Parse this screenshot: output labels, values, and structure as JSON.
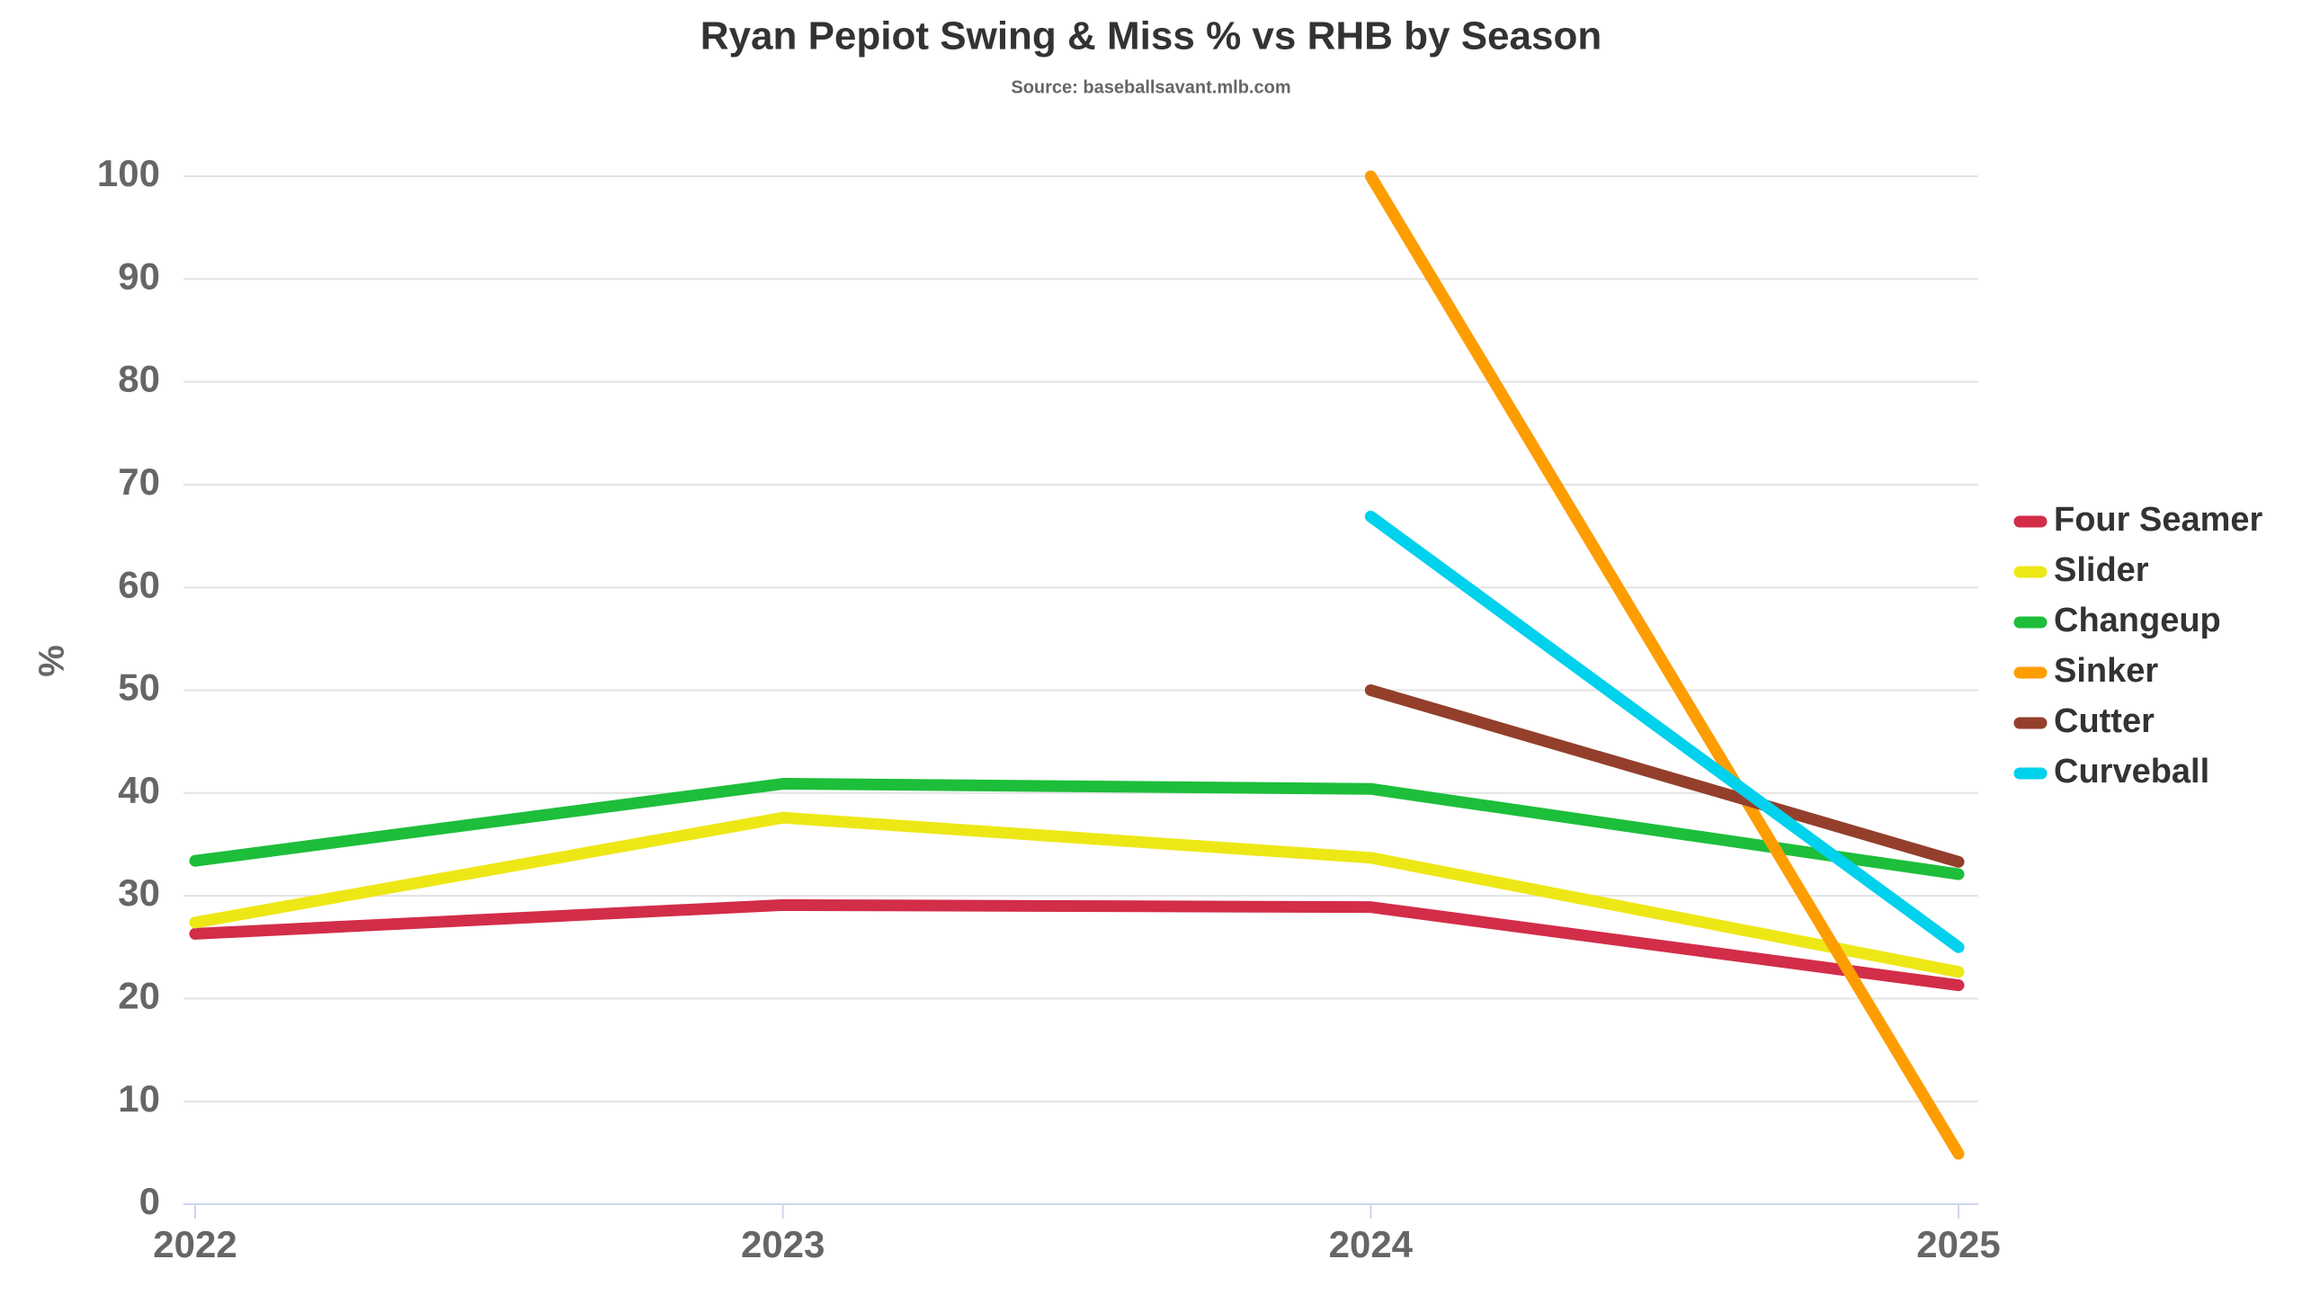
{
  "chart_data": {
    "type": "line",
    "title": "Ryan Pepiot Swing & Miss % vs RHB by Season",
    "subtitle": "Source: baseballsavant.mlb.com",
    "y_label": "%",
    "categories": [
      "2022",
      "2023",
      "2024",
      "2025"
    ],
    "series": [
      {
        "name": "Four Seamer",
        "color": "#d22d49",
        "values": [
          26.3,
          29.1,
          28.9,
          21.3
        ]
      },
      {
        "name": "Slider",
        "color": "#eee716",
        "values": [
          27.4,
          37.6,
          33.7,
          22.6
        ]
      },
      {
        "name": "Changeup",
        "color": "#1dbe3a",
        "values": [
          33.4,
          40.9,
          40.4,
          32.1
        ]
      },
      {
        "name": "Sinker",
        "color": "#fe9d00",
        "values": [
          null,
          null,
          100,
          4.9
        ]
      },
      {
        "name": "Cutter",
        "color": "#933f2c",
        "values": [
          null,
          null,
          50,
          33.3
        ]
      },
      {
        "name": "Curveball",
        "color": "#00d1ed",
        "values": [
          null,
          null,
          66.9,
          25.0
        ]
      }
    ],
    "ylim": [
      0,
      100
    ],
    "yticks": [
      0,
      10,
      20,
      30,
      40,
      50,
      60,
      70,
      80,
      90,
      100
    ],
    "grid": true,
    "legend": "right"
  }
}
